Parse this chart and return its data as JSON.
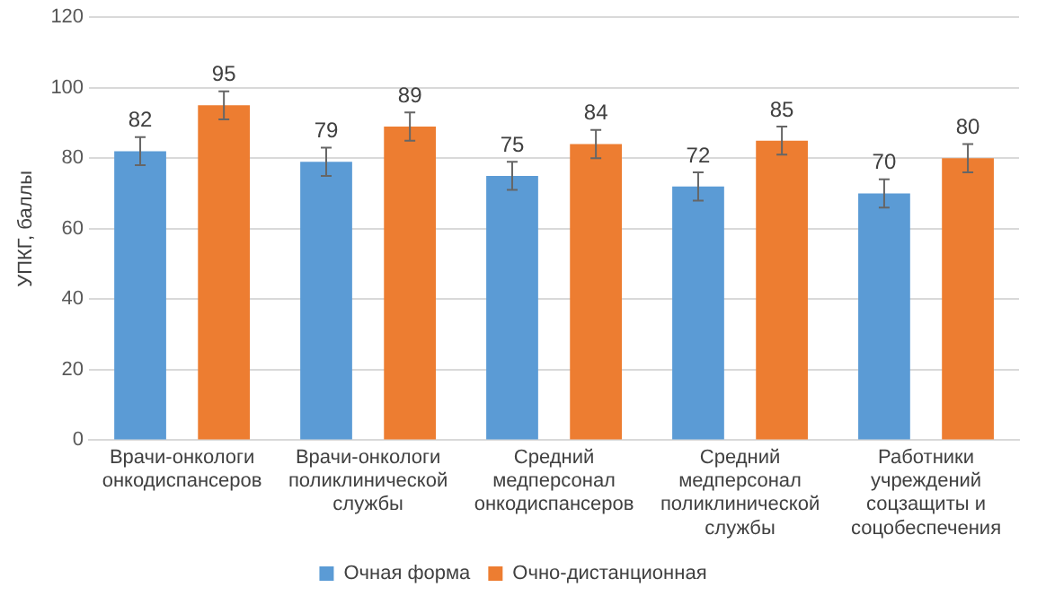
{
  "chart_data": {
    "type": "bar",
    "ylabel": "УПКГ, баллы",
    "categories": [
      "Врачи-онкологи онкодиспансеров",
      "Врачи-онкологи поликлинической службы",
      "Средний медперсонал онкодиспансеров",
      "Средний медперсонал поликлинической службы",
      "Работники учреждений соцзащиты и соцобеспечения"
    ],
    "series": [
      {
        "name": "Очная форма",
        "color": "#5b9bd5",
        "values": [
          82,
          79,
          75,
          72,
          70
        ],
        "errors": [
          4,
          4,
          4,
          4,
          4
        ]
      },
      {
        "name": "Очно-дистанционная",
        "color": "#ed7d31",
        "values": [
          95,
          89,
          84,
          85,
          80
        ],
        "errors": [
          4,
          4,
          4,
          4,
          4
        ]
      }
    ],
    "ylim": [
      0,
      120
    ],
    "yticks": [
      0,
      20,
      40,
      60,
      80,
      100,
      120
    ],
    "grid": "y",
    "legend": "bottom",
    "data_labels": true
  }
}
